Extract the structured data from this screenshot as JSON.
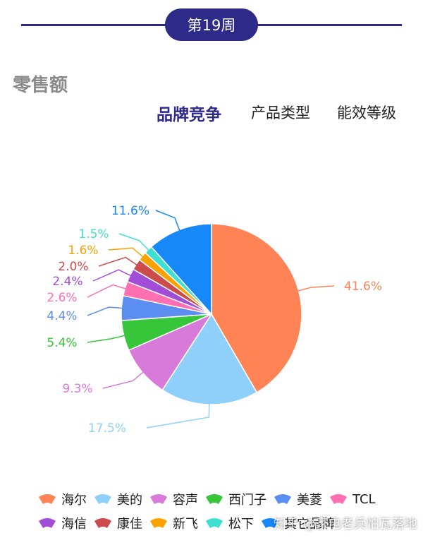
{
  "header": {
    "week_label": "第19周"
  },
  "section_title": "零售额",
  "tabs": [
    {
      "label": "品牌竞争",
      "active": true
    },
    {
      "label": "产品类型",
      "active": false
    },
    {
      "label": "能效等级",
      "active": false
    }
  ],
  "chart_data": {
    "type": "pie",
    "start_angle_deg": 0,
    "direction": "clockwise",
    "categories": [
      "海尔",
      "美的",
      "容声",
      "西门子",
      "美菱",
      "TCL",
      "海信",
      "康佳",
      "新飞",
      "松下",
      "其它品牌"
    ],
    "values": [
      41.6,
      17.5,
      9.3,
      5.4,
      4.4,
      2.6,
      2.4,
      2.0,
      1.6,
      1.5,
      11.6
    ],
    "labels": [
      "41.6%",
      "17.5%",
      "9.3%",
      "5.4%",
      "4.4%",
      "2.6%",
      "2.4%",
      "2.0%",
      "1.6%",
      "1.5%",
      "11.6%"
    ],
    "colors": [
      "#ff8355",
      "#8fd0fb",
      "#d77ad9",
      "#37c53a",
      "#5b8ef0",
      "#ff6fb2",
      "#a24dd6",
      "#cc4b4b",
      "#fba200",
      "#3fe0d2",
      "#1688f7"
    ],
    "legend_position": "bottom"
  },
  "watermark": "知乎 @家电老兵怕瓦落地"
}
